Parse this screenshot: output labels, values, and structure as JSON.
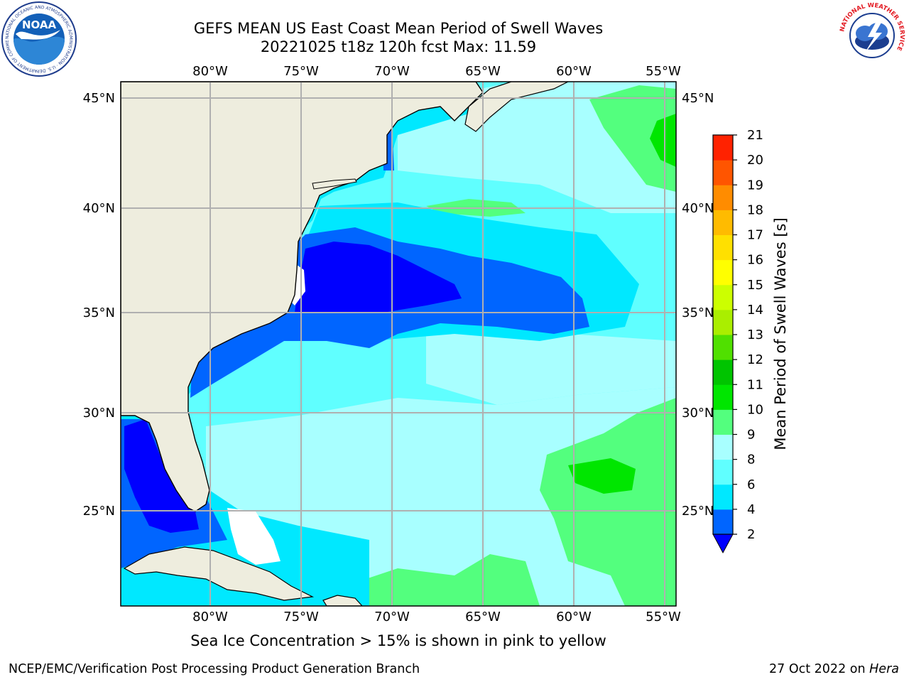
{
  "header": {
    "title_line1": "GEFS MEAN US East Coast Mean Period of Swell Waves",
    "title_line2": "20221025 t18z 120h fcst   Max: 11.59"
  },
  "map": {
    "lon_labels": [
      "80°W",
      "75°W",
      "70°W",
      "65°W",
      "60°W",
      "55°W"
    ],
    "lat_labels": [
      "45°N",
      "40°N",
      "35°N",
      "30°N",
      "25°N"
    ],
    "colors": {
      "land": "#eeedde",
      "ocean_bg": "#00ffff",
      "grid": "#b0b0b0",
      "no_data": "#ffffff"
    }
  },
  "colorbar": {
    "label": "Mean Period of Swell Waves [s]",
    "ticks": [
      "2",
      "4",
      "6",
      "8",
      "9",
      "10",
      "11",
      "12",
      "13",
      "14",
      "15",
      "16",
      "17",
      "18",
      "19",
      "20",
      "21"
    ],
    "colors": [
      "#0065ff",
      "#00e8ff",
      "#60ffff",
      "#a8ffff",
      "#53ff7e",
      "#00e600",
      "#00c400",
      "#50e000",
      "#aaee00",
      "#ccff00",
      "#ffff00",
      "#ffe000",
      "#ffbb00",
      "#ff8c00",
      "#ff5500",
      "#ff2200"
    ],
    "under_color": "#0000ff"
  },
  "footnote": "Sea Ice Concentration > 15% is shown in pink to yellow",
  "credits": {
    "left": "NCEP/EMC/Verification Post Processing Product Generation Branch",
    "right_date": "27 Oct 2022 on ",
    "right_machine": "Hera"
  },
  "logos": {
    "noaa_text": "NOAA",
    "noaa_ring": "NATIONAL OCEANIC AND ATMOSPHERIC ADMINISTRATION · U.S. DEPARTMENT OF COMMERCE",
    "nws_ring": "NATIONAL WEATHER SERVICE"
  }
}
